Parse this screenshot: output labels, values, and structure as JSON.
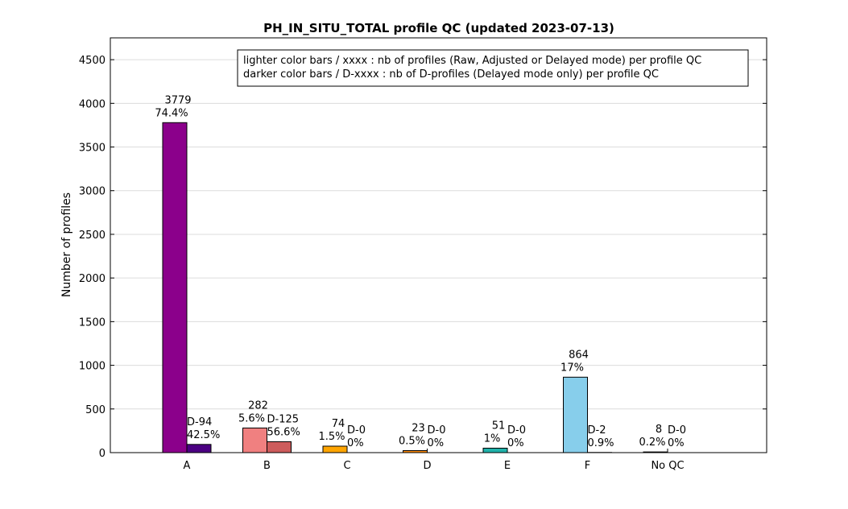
{
  "chart_data": {
    "type": "bar",
    "title": "PH_IN_SITU_TOTAL profile QC (updated 2023-07-13)",
    "xlabel": "",
    "ylabel": "Number of profiles",
    "ylim": [
      0,
      4750
    ],
    "yticks": [
      0,
      500,
      1000,
      1500,
      2000,
      2500,
      3000,
      3500,
      4000,
      4500
    ],
    "grid": true,
    "legend_position": "top-right",
    "legend_lines": [
      "lighter color bars / xxxx : nb of profiles (Raw, Adjusted or Delayed mode) per profile QC",
      "darker color bars / D-xxxx : nb of D-profiles (Delayed mode only) per profile QC"
    ],
    "categories": [
      "A",
      "B",
      "C",
      "D",
      "E",
      "F",
      "No QC"
    ],
    "series": [
      {
        "values": [
          3779,
          282,
          74,
          23,
          51,
          864,
          8
        ],
        "count_labels": [
          "3779",
          "282",
          "74",
          "23",
          "51",
          "864",
          "8"
        ],
        "pct_labels": [
          "74.4%",
          "5.6%",
          "1.5%",
          "0.5%",
          "1%",
          "17%",
          "0.2%"
        ],
        "colors": [
          "#8b008b",
          "#f08080",
          "#ffa500",
          "#ff8c00",
          "#20b2aa",
          "#87ceeb",
          "#000000"
        ]
      },
      {
        "values": [
          94,
          125,
          0,
          0,
          0,
          2,
          0
        ],
        "count_labels": [
          "D-94",
          "D-125",
          "D-0",
          "D-0",
          "D-0",
          "D-2",
          "D-0"
        ],
        "pct_labels": [
          "42.5%",
          "56.6%",
          "0%",
          "0%",
          "0%",
          "0.9%",
          "0%"
        ],
        "colors": [
          "#4b0082",
          "#cd5c5c",
          "#ff8c00",
          "#cc7000",
          "#008b8b",
          "#4682b4",
          "#000000"
        ]
      }
    ]
  }
}
